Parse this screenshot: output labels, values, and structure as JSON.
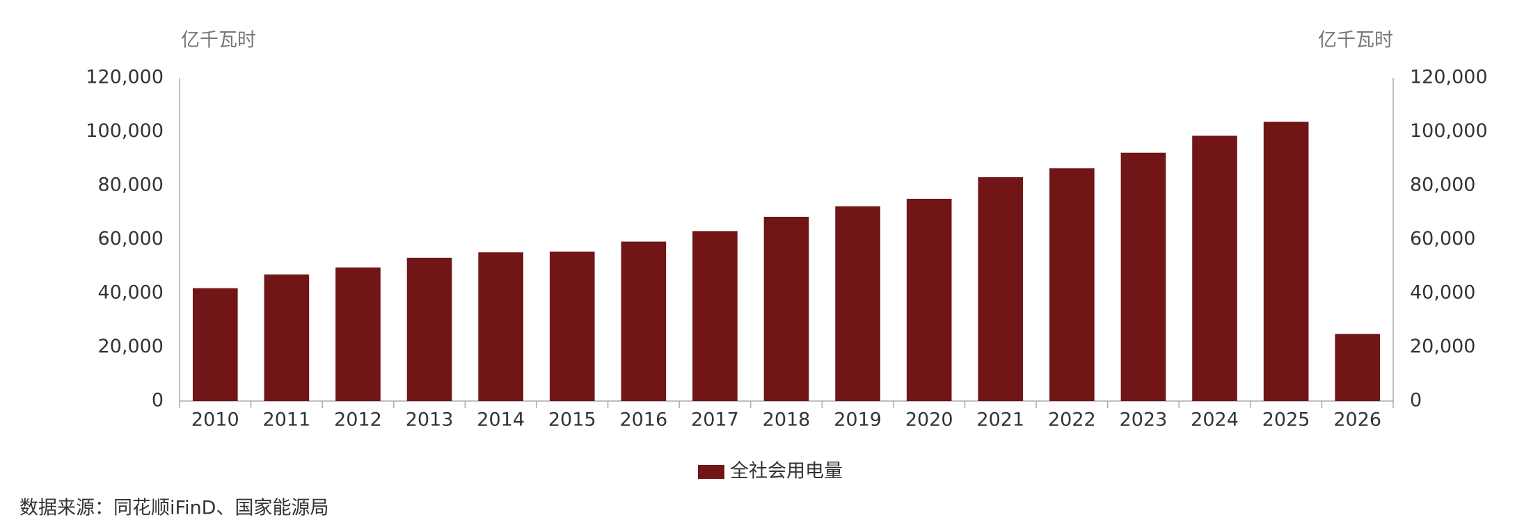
{
  "chart_data": {
    "type": "bar",
    "y_label": "亿千瓦时",
    "y2_label": "亿千瓦时",
    "categories": [
      "2010",
      "2011",
      "2012",
      "2013",
      "2014",
      "2015",
      "2016",
      "2017",
      "2018",
      "2019",
      "2020",
      "2021",
      "2022",
      "2023",
      "2024",
      "2025",
      "2026"
    ],
    "series": [
      {
        "name": "全社会用电量",
        "color": "#711516",
        "values": [
          41900,
          47000,
          49600,
          53200,
          55200,
          55500,
          59200,
          63100,
          68400,
          72300,
          75100,
          83100,
          86400,
          92200,
          98500,
          103700,
          24900
        ]
      }
    ],
    "ylim": [
      0,
      120000
    ],
    "yticks": [
      0,
      {
        "value": 20000,
        "label": "20,000"
      },
      {
        "value": 40000,
        "label": "40,000"
      },
      {
        "value": 60000,
        "label": "60,000"
      },
      {
        "value": 80000,
        "label": "80,000"
      },
      {
        "value": 100000,
        "label": "100,000"
      },
      {
        "value": 120000,
        "label": "120,000"
      }
    ],
    "y2lim": [
      0,
      120000
    ],
    "y2ticks": [
      0,
      {
        "value": 20000,
        "label": "20,000"
      },
      {
        "value": 40000,
        "label": "40,000"
      },
      {
        "value": 60000,
        "label": "60,000"
      },
      {
        "value": 80000,
        "label": "80,000"
      },
      {
        "value": 100000,
        "label": "100,000"
      },
      {
        "value": 120000,
        "label": "120,000"
      }
    ],
    "grid": false,
    "legend": "bottom",
    "source": "数据来源：同花顺iFinD、国家能源局"
  }
}
